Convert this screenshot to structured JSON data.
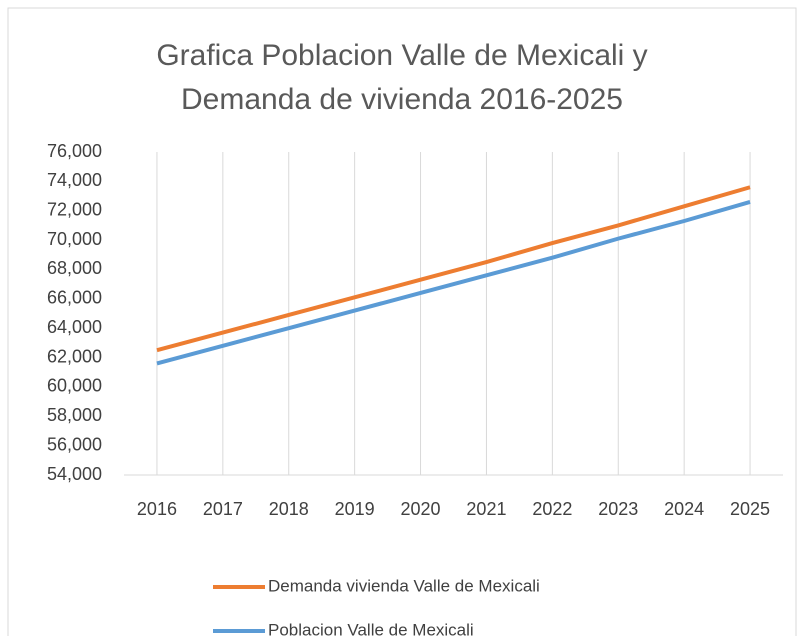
{
  "chart_data": {
    "type": "line",
    "title": [
      "Grafica Poblacion Valle de Mexicali y",
      "Demanda de vivienda 2016-2025"
    ],
    "categories": [
      "2016",
      "2017",
      "2018",
      "2019",
      "2020",
      "2021",
      "2022",
      "2023",
      "2024",
      "2025"
    ],
    "series": [
      {
        "name": "Demanda vivienda Valle de Mexicali",
        "color": "#ed7d31",
        "values": [
          62500,
          63700,
          64900,
          66100,
          67300,
          68500,
          69800,
          71000,
          72300,
          73600
        ]
      },
      {
        "name": "Poblacion Valle de Mexicali",
        "color": "#5b9bd5",
        "values": [
          61600,
          62800,
          64000,
          65200,
          66400,
          67600,
          68800,
          70100,
          71300,
          72600
        ]
      }
    ],
    "ylim": [
      54000,
      76000
    ],
    "yticks": [
      {
        "value": 54000,
        "label": "54,000"
      },
      {
        "value": 56000,
        "label": "56,000"
      },
      {
        "value": 58000,
        "label": "58,000"
      },
      {
        "value": 60000,
        "label": "60,000"
      },
      {
        "value": 62000,
        "label": "62,000"
      },
      {
        "value": 64000,
        "label": "64,000"
      },
      {
        "value": 66000,
        "label": "66,000"
      },
      {
        "value": 68000,
        "label": "68,000"
      },
      {
        "value": 70000,
        "label": "70,000"
      },
      {
        "value": 72000,
        "label": "72,000"
      },
      {
        "value": 74000,
        "label": "74,000"
      },
      {
        "value": 76000,
        "label": "76,000"
      }
    ],
    "xgrid": true,
    "legend": "bottom"
  }
}
